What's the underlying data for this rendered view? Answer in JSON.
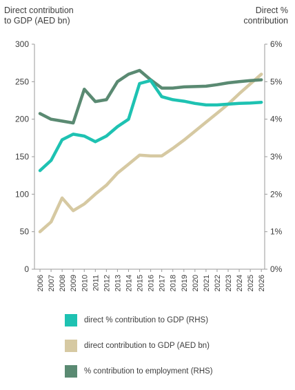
{
  "chart_data": {
    "type": "line",
    "left_axis_label": [
      "Direct contribution",
      "to GDP (AED bn)"
    ],
    "right_axis_label": [
      "Direct %",
      "contribution"
    ],
    "x": [
      "2006",
      "2007",
      "2008",
      "2009",
      "2010",
      "2011",
      "2012",
      "2013",
      "2014",
      "2015",
      "2016",
      "2017",
      "2018",
      "2019",
      "2020",
      "2021",
      "2022",
      "2023",
      "2024",
      "2025",
      "2026"
    ],
    "left_ylim": [
      0,
      300
    ],
    "left_ticks": [
      "0",
      "50",
      "100",
      "150",
      "200",
      "250",
      "300"
    ],
    "right_ylim": [
      0,
      6
    ],
    "right_ticks": [
      "0%",
      "1%",
      "2%",
      "3%",
      "4%",
      "5%",
      "6%"
    ],
    "series": [
      {
        "name": "direct contribution to GDP (AED bn)",
        "axis": "left",
        "color": "#d6c9a2",
        "values": [
          50,
          63,
          95,
          78,
          87,
          100,
          112,
          128,
          140,
          152,
          151,
          151,
          161,
          172,
          184,
          196,
          208,
          220,
          234,
          247,
          260
        ]
      },
      {
        "name": "direct % contribution to GDP (RHS)",
        "axis": "right",
        "color": "#1ec2b2",
        "values": [
          2.63,
          2.9,
          3.45,
          3.6,
          3.55,
          3.4,
          3.55,
          3.8,
          4.0,
          4.95,
          5.03,
          4.6,
          4.52,
          4.48,
          4.42,
          4.38,
          4.38,
          4.4,
          4.42,
          4.43,
          4.45
        ]
      },
      {
        "name": "% contribution to employment (RHS)",
        "axis": "right",
        "color": "#5a8a72",
        "values": [
          4.15,
          4.0,
          3.95,
          3.9,
          4.8,
          4.47,
          4.52,
          5.0,
          5.2,
          5.3,
          5.05,
          4.83,
          4.83,
          4.86,
          4.87,
          4.88,
          4.92,
          4.97,
          5.0,
          5.03,
          5.05
        ]
      }
    ],
    "legend": [
      {
        "label": "direct % contribution to GDP (RHS)",
        "color": "#1ec2b2"
      },
      {
        "label": "direct contribution to GDP (AED bn)",
        "color": "#d6c9a2"
      },
      {
        "label": "% contribution to employment (RHS)",
        "color": "#5a8a72"
      }
    ],
    "legend_placement": "bottom",
    "grid": false
  }
}
